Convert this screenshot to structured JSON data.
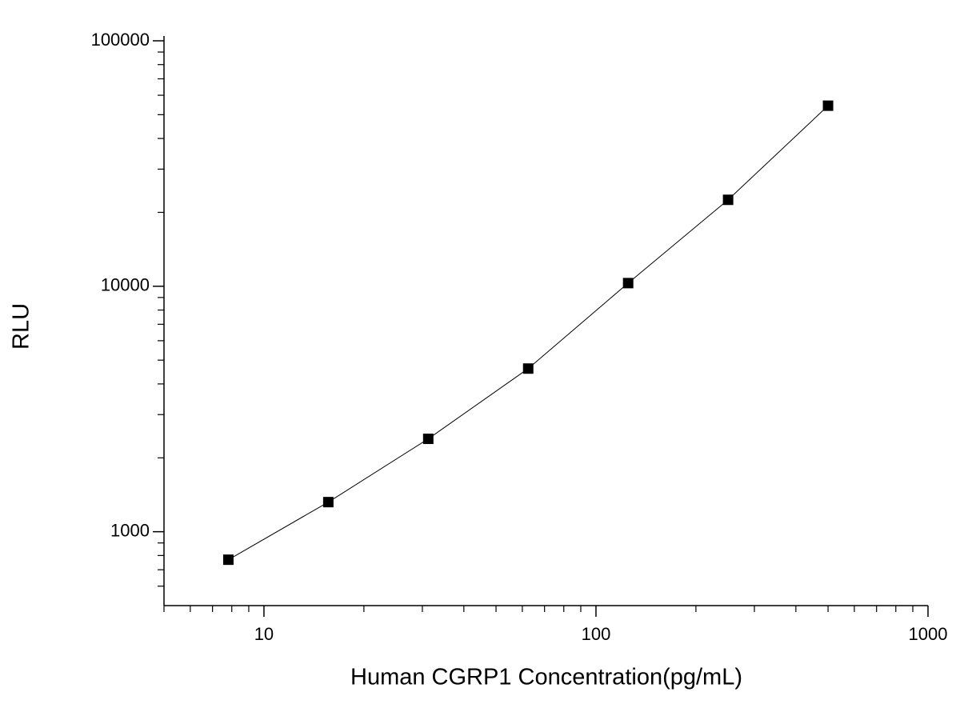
{
  "chart_data": {
    "type": "line",
    "x_label": "Human CGRP1 Concentration(pg/mL)",
    "y_label": "RLU",
    "x": [
      7.8125,
      15.625,
      31.25,
      62.5,
      125,
      250,
      500
    ],
    "series": [
      {
        "color": "#000000",
        "values": [
          769,
          1320,
          2390,
          4620,
          10300,
          22500,
          54400
        ]
      }
    ],
    "xscale": "log",
    "yscale": "log",
    "xlim": [
      5,
      1000
    ],
    "ylim": [
      500,
      100000
    ],
    "xticks": [
      10,
      100,
      1000
    ],
    "yticks": [
      1000,
      10000,
      100000
    ],
    "xticks_minor": [
      5,
      6,
      7,
      8,
      9,
      20,
      30,
      40,
      50,
      60,
      70,
      80,
      90,
      200,
      300,
      400,
      500,
      600,
      700,
      800,
      900
    ],
    "yticks_minor": [
      600,
      700,
      800,
      900,
      2000,
      3000,
      4000,
      5000,
      6000,
      7000,
      8000,
      9000,
      20000,
      30000,
      40000,
      50000,
      60000,
      70000,
      80000,
      90000
    ],
    "grid": false
  }
}
